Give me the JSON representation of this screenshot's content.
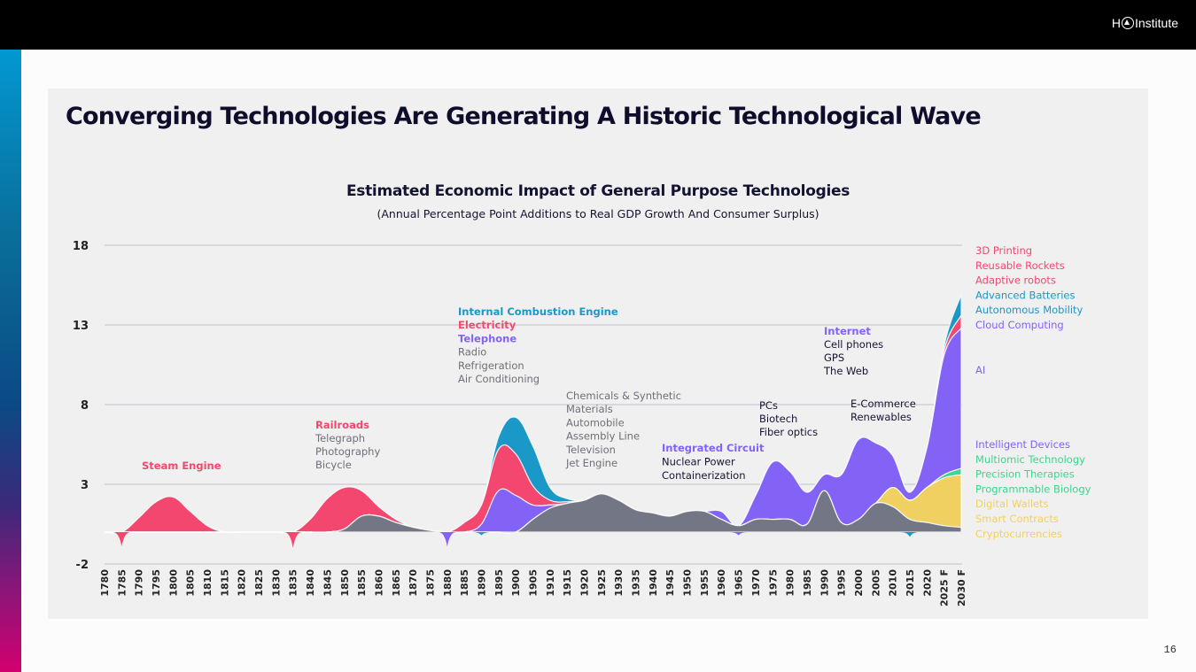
{
  "header": {
    "logo_text_left": "H",
    "logo_text_right": "Institute"
  },
  "page": {
    "title": "Converging Technologies Are Generating A Historic Technological Wave",
    "page_number": "16"
  },
  "colors": {
    "pink": "#f4476f",
    "blue": "#1a98c8",
    "purple": "#8263f6",
    "gray": "#737785",
    "green": "#3fd48f",
    "yellow": "#f1d062",
    "text_dark": "#141432",
    "text_gray": "#6e6e78"
  },
  "chart_data": {
    "type": "area",
    "title": "Estimated Economic Impact of General Purpose Technologies",
    "subtitle": "(Annual Percentage Point Additions to Real GDP Growth And Consumer Surplus)",
    "xlabel": "",
    "ylabel": "",
    "ylim": [
      -2,
      18
    ],
    "yticks": [
      "18",
      "13",
      "8",
      "3",
      "-2"
    ],
    "ytick_values": [
      18,
      13,
      8,
      3,
      -2
    ],
    "grid": true,
    "x": [
      "1780",
      "1785",
      "1790",
      "1795",
      "1800",
      "1805",
      "1810",
      "1815",
      "1820",
      "1825",
      "1830",
      "1835",
      "1840",
      "1845",
      "1850",
      "1855",
      "1860",
      "1865",
      "1870",
      "1875",
      "1880",
      "1885",
      "1890",
      "1895",
      "1900",
      "1905",
      "1910",
      "1915",
      "1920",
      "1925",
      "1930",
      "1935",
      "1940",
      "1945",
      "1950",
      "1955",
      "1960",
      "1965",
      "1970",
      "1975",
      "1980",
      "1985",
      "1990",
      "1995",
      "2000",
      "2005",
      "2010",
      "2015",
      "2020",
      "2025 F",
      "2030 F"
    ],
    "series": [
      {
        "name": "Steam Engine / Railroads / Electricity / Reusable Rockets (pink)",
        "color_key": "pink",
        "values": [
          0,
          -0.9,
          0.9,
          1.9,
          2.2,
          1.3,
          0.4,
          0,
          0,
          0,
          0,
          -1,
          0.8,
          2.1,
          2.6,
          1.6,
          0.6,
          0.2,
          0,
          0,
          0,
          0.6,
          1.2,
          2.6,
          2.6,
          1.2,
          0.3,
          0.1,
          0,
          0,
          0,
          0,
          0,
          0,
          0,
          0,
          0,
          0,
          0,
          0,
          0,
          0,
          0,
          0,
          0,
          0,
          0,
          0,
          0,
          0.3,
          0.8
        ]
      },
      {
        "name": "Internal Combustion Engine / Advanced Batteries (blue)",
        "color_key": "blue",
        "values": [
          0,
          0,
          0,
          0,
          0,
          0,
          0,
          0,
          0,
          0,
          0,
          0,
          0,
          0,
          0,
          0,
          0,
          0,
          0,
          0,
          0,
          0,
          -0.2,
          0.8,
          2.3,
          2.5,
          0.8,
          0.2,
          0,
          0,
          0,
          0,
          0,
          0,
          0,
          0,
          0,
          0,
          0,
          0,
          0,
          0,
          0,
          0,
          0,
          0,
          0,
          -0.3,
          0,
          0.3,
          1.3
        ]
      },
      {
        "name": "Telephone / Integrated Circuit / Internet / AI (purple)",
        "color_key": "purple",
        "values": [
          0,
          0,
          0,
          0,
          0,
          0,
          0,
          0,
          0,
          0,
          0,
          0,
          0,
          0,
          0,
          0,
          0,
          0,
          0,
          0,
          -0.9,
          0,
          0.5,
          2.6,
          2.3,
          0.9,
          0.2,
          0,
          0,
          0,
          0,
          0,
          0,
          0,
          0,
          0,
          0.5,
          -0.2,
          1.5,
          3.6,
          3.0,
          2.0,
          1.0,
          3.0,
          5.0,
          3.8,
          2.0,
          0.5,
          2.5,
          7.5,
          8.8
        ]
      },
      {
        "name": "Other technologies (gray)",
        "color_key": "gray",
        "values": [
          0,
          0,
          0,
          0,
          0,
          0,
          0,
          0,
          0,
          0,
          0,
          0,
          0,
          0,
          0.2,
          1.0,
          1.0,
          0.6,
          0.3,
          0.1,
          0,
          0,
          0,
          0,
          0,
          0.8,
          1.5,
          1.8,
          2.0,
          2.4,
          2.0,
          1.4,
          1.2,
          1.0,
          1.3,
          1.3,
          0.8,
          0.4,
          0.8,
          0.8,
          0.8,
          0.5,
          2.6,
          0.6,
          0.8,
          1.8,
          1.6,
          0.8,
          0.6,
          0.4,
          0.3
        ]
      },
      {
        "name": "Multiomic Technology / Precision Therapies / Programmable Biology (green)",
        "color_key": "green",
        "values": [
          0,
          0,
          0,
          0,
          0,
          0,
          0,
          0,
          0,
          0,
          0,
          0,
          0,
          0,
          0,
          0,
          0,
          0,
          0,
          0,
          0,
          0,
          0,
          0,
          0,
          0,
          0,
          0,
          0,
          0,
          0,
          0,
          0,
          0,
          0,
          0,
          0,
          0,
          0,
          0,
          0,
          0,
          0,
          0,
          0,
          0,
          0,
          0,
          0,
          0.2,
          0.4
        ]
      },
      {
        "name": "Digital Wallets / Smart Contracts / Cryptocurrencies (yellow)",
        "color_key": "yellow",
        "values": [
          0,
          0,
          0,
          0,
          0,
          0,
          0,
          0,
          0,
          0,
          0,
          0,
          0,
          0,
          0,
          0,
          0,
          0,
          0,
          0,
          0,
          0,
          0,
          0,
          0,
          0,
          0,
          0,
          0,
          0,
          0,
          0,
          0,
          0,
          0,
          0,
          0,
          0,
          0,
          0,
          0,
          0,
          0,
          0,
          0,
          0,
          1.2,
          1.2,
          2.2,
          3.0,
          3.3
        ]
      }
    ],
    "annotations": [
      {
        "lines": [
          {
            "text": "Steam Engine",
            "style": "pink-bold"
          }
        ]
      },
      {
        "lines": [
          {
            "text": "Railroads",
            "style": "pink-bold"
          },
          {
            "text": "Telegraph",
            "style": "gray"
          },
          {
            "text": "Photography",
            "style": "gray"
          },
          {
            "text": "Bicycle",
            "style": "gray"
          }
        ]
      },
      {
        "lines": [
          {
            "text": "Internal Combustion Engine",
            "style": "blue-bold"
          },
          {
            "text": "Electricity",
            "style": "pink-bold"
          },
          {
            "text": "Telephone",
            "style": "purple-bold"
          },
          {
            "text": "Radio",
            "style": "gray"
          },
          {
            "text": "Refrigeration",
            "style": "gray"
          },
          {
            "text": "Air Conditioning",
            "style": "gray"
          }
        ]
      },
      {
        "lines": [
          {
            "text": "Chemicals & Synthetic",
            "style": "gray"
          },
          {
            "text": "Materials",
            "style": "gray"
          },
          {
            "text": "Automobile",
            "style": "gray"
          },
          {
            "text": "Assembly Line",
            "style": "gray"
          },
          {
            "text": "Television",
            "style": "gray"
          },
          {
            "text": "Jet Engine",
            "style": "gray"
          }
        ]
      },
      {
        "lines": [
          {
            "text": "Integrated Circuit",
            "style": "purple-bold"
          },
          {
            "text": "Nuclear Power",
            "style": "dark"
          },
          {
            "text": "Containerization",
            "style": "dark"
          }
        ]
      },
      {
        "lines": [
          {
            "text": "PCs",
            "style": "dark"
          },
          {
            "text": "Biotech",
            "style": "dark"
          },
          {
            "text": "Fiber optics",
            "style": "dark"
          }
        ]
      },
      {
        "lines": [
          {
            "text": "Internet",
            "style": "purple-bold"
          },
          {
            "text": "Cell phones",
            "style": "dark"
          },
          {
            "text": "GPS",
            "style": "dark"
          },
          {
            "text": "The Web",
            "style": "dark"
          }
        ]
      },
      {
        "lines": [
          {
            "text": "E-Commerce",
            "style": "dark"
          },
          {
            "text": "Renewables",
            "style": "dark"
          }
        ]
      }
    ],
    "legend_top": [
      {
        "text": "3D Printing",
        "color_key": "pink"
      },
      {
        "text": "Reusable Rockets",
        "color_key": "pink"
      },
      {
        "text": "Adaptive robots",
        "color_key": "pink"
      },
      {
        "text": "Advanced Batteries",
        "color_key": "blue"
      },
      {
        "text": "Autonomous Mobility",
        "color_key": "blue"
      },
      {
        "text": "Cloud Computing",
        "color_key": "purple"
      }
    ],
    "legend_ai": {
      "text": "AI",
      "color_key": "purple"
    },
    "legend_bottom": [
      {
        "text": "Intelligent Devices",
        "color_key": "purple"
      },
      {
        "text": "Multiomic Technology",
        "color_key": "green"
      },
      {
        "text": "Precision Therapies",
        "color_key": "green"
      },
      {
        "text": "Programmable Biology",
        "color_key": "green"
      },
      {
        "text": "Digital Wallets",
        "color_key": "yellow"
      },
      {
        "text": "Smart Contracts",
        "color_key": "yellow"
      },
      {
        "text": "Cryptocurrencies",
        "color_key": "yellow"
      }
    ],
    "legend_position": "right"
  }
}
